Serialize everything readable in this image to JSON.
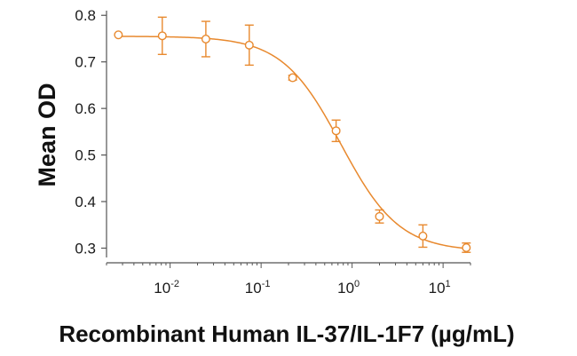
{
  "chart_data": {
    "type": "scatter",
    "title": "",
    "xlabel": "Recombinant Human IL-37/IL-1F7 (µg/mL)",
    "ylabel": "Mean OD",
    "x_scale": "log",
    "xlim": [
      0.002,
      20
    ],
    "ylim": [
      0.28,
      0.81
    ],
    "x_ticks": [
      {
        "value": 0.01,
        "base": "10",
        "exp": "-2"
      },
      {
        "value": 0.1,
        "base": "10",
        "exp": "-1"
      },
      {
        "value": 1,
        "base": "10",
        "exp": "0"
      },
      {
        "value": 10,
        "base": "10",
        "exp": "1"
      }
    ],
    "y_ticks": [
      {
        "value": 0.3,
        "label": "0.3"
      },
      {
        "value": 0.4,
        "label": "0.4"
      },
      {
        "value": 0.5,
        "label": "0.5"
      },
      {
        "value": 0.6,
        "label": "0.6"
      },
      {
        "value": 0.7,
        "label": "0.7"
      },
      {
        "value": 0.8,
        "label": "0.8"
      }
    ],
    "grid": false,
    "legend": "none",
    "color": "#e8892e",
    "points": [
      {
        "x": 0.0027,
        "y": 0.758,
        "err": 0.0
      },
      {
        "x": 0.0082,
        "y": 0.756,
        "err": 0.04
      },
      {
        "x": 0.0247,
        "y": 0.749,
        "err": 0.038
      },
      {
        "x": 0.0741,
        "y": 0.736,
        "err": 0.043
      },
      {
        "x": 0.222,
        "y": 0.666,
        "err": 0.005
      },
      {
        "x": 0.667,
        "y": 0.552,
        "err": 0.023
      },
      {
        "x": 2.0,
        "y": 0.368,
        "err": 0.014
      },
      {
        "x": 6.0,
        "y": 0.326,
        "err": 0.024
      },
      {
        "x": 18.0,
        "y": 0.301,
        "err": 0.01
      }
    ],
    "fit": {
      "top": 0.755,
      "bottom": 0.293,
      "ec50": 0.75,
      "hill": 1.35
    }
  }
}
